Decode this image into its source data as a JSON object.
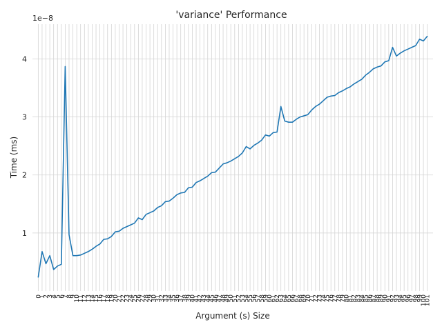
{
  "chart_data": {
    "type": "line",
    "title": "'variance' Performance",
    "xlabel": "Argument (s) Size",
    "ylabel": "Time (ms)",
    "y_offset_label": "1e−8",
    "y_scale": 1e-08,
    "xlim": [
      -1.5,
      102.5
    ],
    "ylim": [
      0.0,
      4.6
    ],
    "yticks": [
      1,
      2,
      3,
      4
    ],
    "grid": true,
    "series": [
      {
        "color": "#1f77b4",
        "x": [
          0,
          1,
          2,
          3,
          4,
          5,
          6,
          7,
          8,
          9,
          10,
          11,
          12,
          13,
          14,
          15,
          16,
          17,
          18,
          19,
          20,
          21,
          22,
          23,
          24,
          25,
          26,
          27,
          28,
          29,
          30,
          31,
          32,
          33,
          34,
          35,
          36,
          37,
          38,
          39,
          40,
          41,
          42,
          43,
          44,
          45,
          46,
          47,
          48,
          49,
          50,
          51,
          52,
          53,
          54,
          55,
          56,
          57,
          58,
          59,
          60,
          61,
          62,
          63,
          64,
          65,
          66,
          67,
          68,
          69,
          70,
          71,
          72,
          73,
          74,
          75,
          76,
          77,
          78,
          79,
          80,
          81,
          82,
          83,
          84,
          85,
          86,
          87,
          88,
          89,
          90,
          91,
          92,
          93,
          94,
          95,
          96,
          97,
          98,
          99,
          100,
          101
        ],
        "values": [
          0.24,
          0.68,
          0.47,
          0.61,
          0.37,
          0.43,
          0.46,
          3.87,
          0.97,
          0.61,
          0.61,
          0.62,
          0.65,
          0.68,
          0.72,
          0.77,
          0.81,
          0.89,
          0.9,
          0.94,
          1.02,
          1.03,
          1.08,
          1.11,
          1.14,
          1.17,
          1.26,
          1.23,
          1.32,
          1.35,
          1.38,
          1.44,
          1.47,
          1.54,
          1.55,
          1.6,
          1.66,
          1.69,
          1.7,
          1.78,
          1.79,
          1.87,
          1.9,
          1.94,
          1.98,
          2.04,
          2.05,
          2.12,
          2.19,
          2.21,
          2.24,
          2.28,
          2.32,
          2.38,
          2.49,
          2.45,
          2.51,
          2.55,
          2.6,
          2.69,
          2.67,
          2.73,
          2.74,
          3.18,
          2.93,
          2.91,
          2.91,
          2.96,
          3.0,
          3.02,
          3.04,
          3.12,
          3.18,
          3.22,
          3.28,
          3.34,
          3.36,
          3.37,
          3.42,
          3.45,
          3.49,
          3.52,
          3.57,
          3.61,
          3.65,
          3.72,
          3.77,
          3.83,
          3.86,
          3.88,
          3.95,
          3.97,
          4.2,
          4.05,
          4.1,
          4.14,
          4.17,
          4.2,
          4.23,
          4.34,
          4.31,
          4.39
        ]
      }
    ]
  }
}
